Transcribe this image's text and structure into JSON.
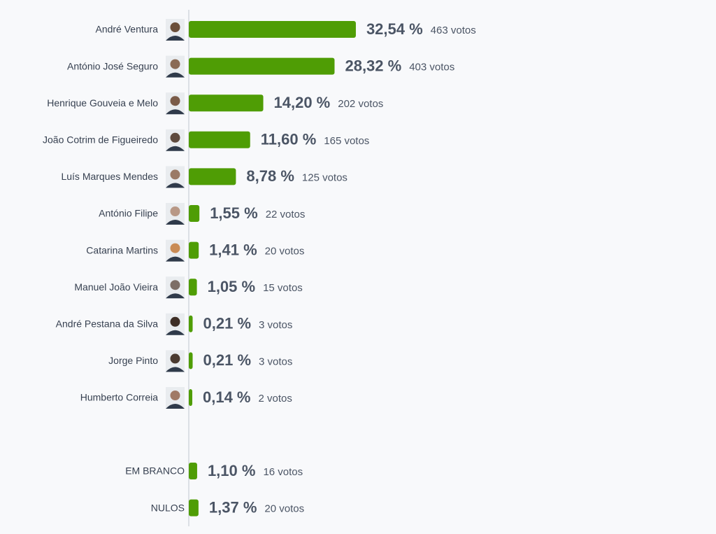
{
  "chart_data": [
    {
      "type": "bar",
      "orientation": "horizontal",
      "color": "#4f9d05",
      "categories": [
        "André Ventura",
        "António José Seguro",
        "Henrique Gouveia e Melo",
        "João Cotrim de Figueiredo",
        "Luís Marques Mendes",
        "António Filipe",
        "Catarina Martins",
        "Manuel João Vieira",
        "André Pestana da Silva",
        "Jorge Pinto",
        "Humberto Correia"
      ],
      "values": [
        32.54,
        28.32,
        14.2,
        11.6,
        8.78,
        1.55,
        1.41,
        1.05,
        0.21,
        0.21,
        0.14
      ],
      "value_labels": [
        "32,54 %",
        "28,32 %",
        "14,20 %",
        "11,60 %",
        "8,78 %",
        "1,55 %",
        "1,41 %",
        "1,05 %",
        "0,21 %",
        "0,21 %",
        "0,14 %"
      ],
      "vote_labels": [
        "463 votos",
        "403 votos",
        "202 votos",
        "165 votos",
        "125 votos",
        "22 votos",
        "20 votos",
        "15 votos",
        "3 votos",
        "3 votos",
        "2 votos"
      ]
    },
    {
      "type": "bar",
      "orientation": "horizontal",
      "color": "#4f9d05",
      "categories": [
        "EM BRANCO",
        "NULOS"
      ],
      "values": [
        1.1,
        1.37
      ],
      "value_labels": [
        "1,10 %",
        "1,37 %"
      ],
      "vote_labels": [
        "16 votos",
        "20 votos"
      ]
    }
  ]
}
